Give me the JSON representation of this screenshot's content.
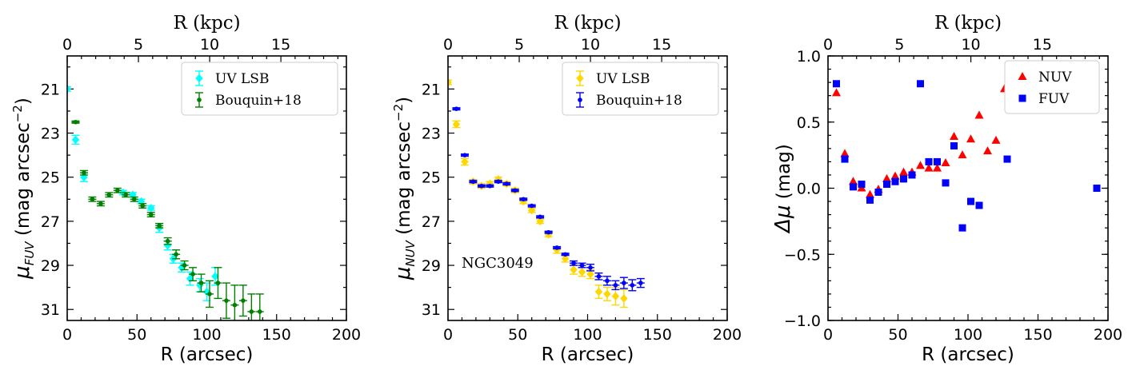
{
  "chart_data": [
    {
      "id": "fuv",
      "type": "scatter",
      "top_xlabel": "R (kpc)",
      "top_ticks": [
        0,
        5,
        10,
        15
      ],
      "xlabel": "R (arcsec)",
      "ylabel_main": "μ",
      "ylabel_sub": "FUV",
      "ylabel_tail": " (mag arcsec",
      "ylabel_exp": "−2",
      "ylabel_close": ")",
      "x_ticks": [
        0,
        50,
        100,
        150,
        200
      ],
      "y_ticks": [
        21,
        23,
        25,
        27,
        29,
        31
      ],
      "xlim": [
        0,
        200
      ],
      "ylim": [
        31.5,
        19.5
      ],
      "kpc_max": 19.6,
      "annotation": "",
      "legend_position": "top-right",
      "legend": [
        {
          "label": "UV LSB",
          "color": "#00ffff",
          "marker": "diamond"
        },
        {
          "label": "Bouquin+18",
          "color": "#008000",
          "marker": "dot"
        }
      ],
      "series": [
        {
          "name": "UV LSB",
          "color": "#00ffff",
          "marker": "diamond",
          "x": [
            0,
            6,
            12,
            40,
            47,
            53,
            60,
            66,
            72,
            76,
            82,
            88,
            95,
            100,
            106
          ],
          "y": [
            21.0,
            23.3,
            25.0,
            25.7,
            25.8,
            26.1,
            26.4,
            27.3,
            28.1,
            28.7,
            29.1,
            29.6,
            29.9,
            30.2,
            29.5
          ],
          "yerr": [
            0.1,
            0.2,
            0.2,
            0.1,
            0.1,
            0.1,
            0.1,
            0.2,
            0.2,
            0.2,
            0.2,
            0.3,
            0.3,
            0.4,
            0.4
          ]
        },
        {
          "name": "Bouquin+18",
          "color": "#008000",
          "marker": "dot",
          "x": [
            6,
            12,
            18,
            24,
            30,
            36,
            42,
            48,
            54,
            60,
            66,
            72,
            78,
            84,
            90,
            96,
            102,
            108,
            114,
            120,
            126,
            132,
            138
          ],
          "y": [
            22.5,
            24.8,
            26.0,
            26.2,
            25.8,
            25.6,
            25.8,
            26.0,
            26.3,
            26.7,
            27.2,
            27.9,
            28.5,
            29.0,
            29.4,
            29.8,
            30.3,
            29.8,
            30.6,
            30.8,
            30.6,
            31.1,
            31.1
          ],
          "yerr": [
            0.05,
            0.1,
            0.1,
            0.1,
            0.1,
            0.1,
            0.1,
            0.1,
            0.1,
            0.1,
            0.1,
            0.15,
            0.2,
            0.2,
            0.3,
            0.4,
            0.6,
            0.7,
            0.8,
            0.9,
            0.7,
            0.8,
            0.8
          ]
        }
      ]
    },
    {
      "id": "nuv",
      "type": "scatter",
      "top_xlabel": "R (kpc)",
      "top_ticks": [
        0,
        5,
        10,
        15
      ],
      "xlabel": "R (arcsec)",
      "ylabel_main": "μ",
      "ylabel_sub": "NUV",
      "ylabel_tail": " (mag arcsec",
      "ylabel_exp": "−2",
      "ylabel_close": ")",
      "x_ticks": [
        0,
        50,
        100,
        150,
        200
      ],
      "y_ticks": [
        21,
        23,
        25,
        27,
        29,
        31
      ],
      "xlim": [
        0,
        200
      ],
      "ylim": [
        31.5,
        19.5
      ],
      "kpc_max": 19.6,
      "annotation": "NGC3049",
      "legend_position": "top-right",
      "legend": [
        {
          "label": "UV LSB",
          "color": "#ffd700",
          "marker": "diamond"
        },
        {
          "label": "Bouquin+18",
          "color": "#0000ff",
          "marker": "dot"
        }
      ],
      "series": [
        {
          "name": "UV LSB",
          "color": "#ffd700",
          "marker": "diamond",
          "x": [
            0,
            6,
            12,
            18,
            24,
            30,
            36,
            42,
            48,
            54,
            60,
            66,
            72,
            78,
            84,
            90,
            96,
            102,
            108,
            114,
            120,
            126
          ],
          "y": [
            20.7,
            22.6,
            24.3,
            25.2,
            25.4,
            25.3,
            25.1,
            25.3,
            25.6,
            26.1,
            26.5,
            27.0,
            27.6,
            28.3,
            28.7,
            29.2,
            29.3,
            29.4,
            30.2,
            30.3,
            30.4,
            30.5
          ],
          "yerr": [
            0.1,
            0.15,
            0.15,
            0.1,
            0.1,
            0.1,
            0.1,
            0.1,
            0.1,
            0.1,
            0.1,
            0.1,
            0.1,
            0.15,
            0.15,
            0.2,
            0.2,
            0.2,
            0.3,
            0.3,
            0.4,
            0.4
          ]
        },
        {
          "name": "Bouquin+18",
          "color": "#0000ff",
          "marker": "dot",
          "x": [
            6,
            12,
            18,
            24,
            30,
            36,
            42,
            48,
            54,
            60,
            66,
            72,
            78,
            84,
            90,
            96,
            102,
            108,
            114,
            120,
            126,
            132,
            138
          ],
          "y": [
            21.9,
            24.0,
            25.2,
            25.4,
            25.4,
            25.2,
            25.3,
            25.6,
            26.0,
            26.3,
            26.8,
            27.5,
            28.2,
            28.5,
            28.9,
            29.0,
            29.1,
            29.5,
            29.7,
            29.9,
            29.8,
            29.9,
            29.8
          ],
          "yerr": [
            0.05,
            0.05,
            0.05,
            0.05,
            0.05,
            0.05,
            0.05,
            0.05,
            0.05,
            0.05,
            0.05,
            0.05,
            0.05,
            0.05,
            0.1,
            0.1,
            0.15,
            0.15,
            0.2,
            0.2,
            0.25,
            0.25,
            0.2
          ]
        }
      ]
    },
    {
      "id": "delta",
      "type": "scatter",
      "top_xlabel": "R (kpc)",
      "top_ticks": [
        0,
        5,
        10,
        15
      ],
      "xlabel": "R (arcsec)",
      "ylabel_main": "Δμ",
      "ylabel_sub": "",
      "ylabel_tail": " (mag)",
      "ylabel_exp": "",
      "ylabel_close": "",
      "x_ticks": [
        0,
        50,
        100,
        150,
        200
      ],
      "y_ticks": [
        1.0,
        0.5,
        0.0,
        -0.5,
        -1.0
      ],
      "y_tick_labels": [
        "1.0",
        "0.5",
        "0.0",
        "−0.5",
        "−1.0"
      ],
      "xlim": [
        0,
        200
      ],
      "ylim": [
        -1.0,
        1.0
      ],
      "kpc_max": 19.6,
      "annotation": "",
      "legend_position": "top-right",
      "legend": [
        {
          "label": "NUV",
          "color": "#ff0000",
          "marker": "triangle"
        },
        {
          "label": "FUV",
          "color": "#0000ff",
          "marker": "square"
        }
      ],
      "series": [
        {
          "name": "NUV",
          "color": "#ff0000",
          "marker": "triangle",
          "x": [
            6,
            12,
            18,
            24,
            30,
            36,
            42,
            48,
            54,
            60,
            66,
            72,
            78,
            84,
            90,
            96,
            102,
            108,
            114,
            120,
            126
          ],
          "y": [
            0.72,
            0.26,
            0.05,
            0.0,
            -0.05,
            -0.01,
            0.07,
            0.09,
            0.12,
            0.12,
            0.17,
            0.15,
            0.15,
            0.19,
            0.39,
            0.25,
            0.37,
            0.55,
            0.28,
            0.36,
            0.75
          ]
        },
        {
          "name": "FUV",
          "color": "#0000ff",
          "marker": "square",
          "x": [
            6,
            12,
            18,
            24,
            30,
            36,
            42,
            48,
            54,
            60,
            66,
            72,
            78,
            84,
            90,
            96,
            102,
            108,
            128,
            192
          ],
          "y": [
            0.79,
            0.22,
            0.01,
            0.03,
            -0.09,
            -0.03,
            0.03,
            0.05,
            0.07,
            0.1,
            0.79,
            0.2,
            0.2,
            0.04,
            0.32,
            -0.3,
            -0.1,
            -0.13,
            0.22,
            0.0
          ]
        }
      ]
    }
  ]
}
